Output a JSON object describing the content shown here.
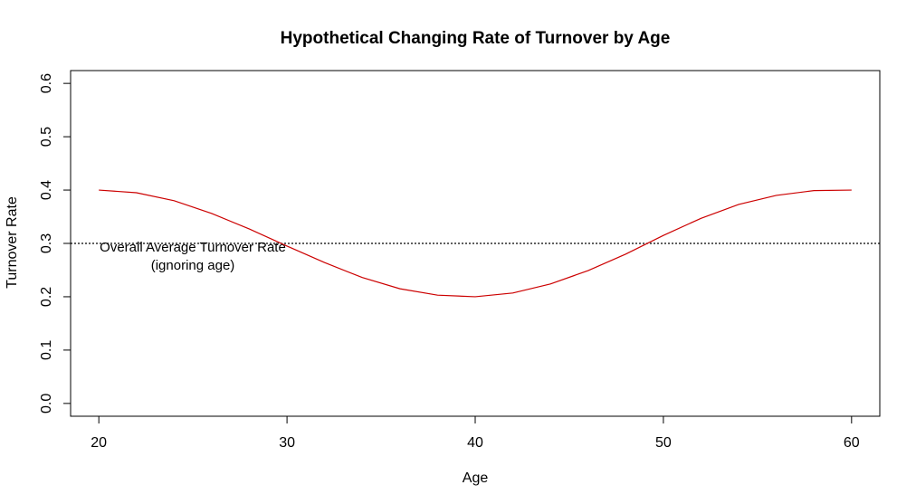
{
  "chart_data": {
    "type": "line",
    "title": "Hypothetical Changing Rate of Turnover by Age",
    "xlabel": "Age",
    "ylabel": "Turnover Rate",
    "xlim": [
      18.5,
      61.5
    ],
    "ylim": [
      -0.024,
      0.624
    ],
    "x_ticks": [
      20,
      30,
      40,
      50,
      60
    ],
    "y_ticks": [
      0.0,
      0.1,
      0.2,
      0.3,
      0.4,
      0.5,
      0.6
    ],
    "x_tick_labels": [
      "20",
      "30",
      "40",
      "50",
      "60"
    ],
    "y_tick_labels": [
      "0.0",
      "0.1",
      "0.2",
      "0.3",
      "0.4",
      "0.5",
      "0.6"
    ],
    "grid": false,
    "series": [
      {
        "color": "#cc0000",
        "x": [
          20,
          22,
          24,
          26,
          28,
          30,
          32,
          34,
          36,
          38,
          40,
          42,
          44,
          46,
          48,
          50,
          52,
          54,
          56,
          58,
          60
        ],
        "y": [
          0.4,
          0.395,
          0.38,
          0.356,
          0.327,
          0.295,
          0.264,
          0.236,
          0.215,
          0.203,
          0.2,
          0.207,
          0.224,
          0.249,
          0.28,
          0.315,
          0.347,
          0.373,
          0.39,
          0.399,
          0.4
        ]
      }
    ],
    "reference_line": {
      "y": 0.3,
      "style": "dotted",
      "color": "#000000"
    },
    "annotation": {
      "lines": [
        "Overall Average Turnover Rate",
        "(ignoring age)"
      ]
    }
  }
}
